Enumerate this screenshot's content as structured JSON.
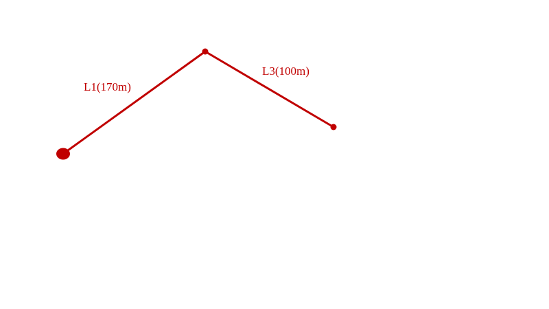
{
  "diagram": {
    "color": "#c00000",
    "segments": [
      {
        "label": "L1(170m)"
      },
      {
        "label": "L3(100m)"
      }
    ]
  }
}
